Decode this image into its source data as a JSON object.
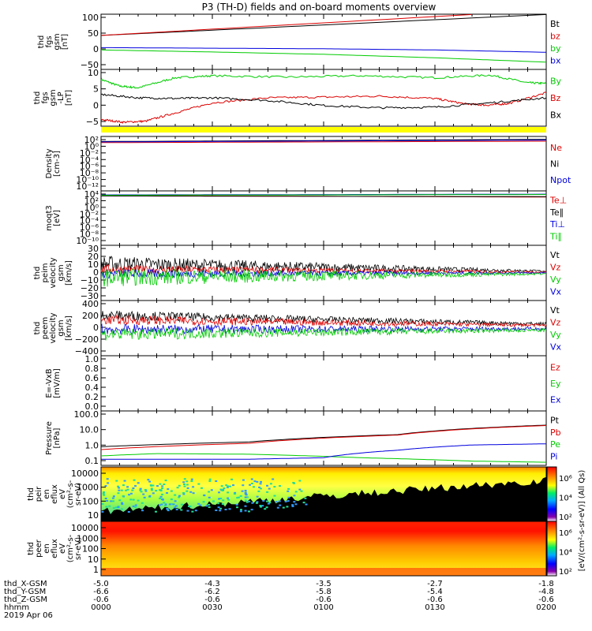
{
  "chart_data": {
    "type": "line",
    "title": "P3 (TH-D) fields and on-board moments overview",
    "x": {
      "ticks": [
        "0000",
        "0030",
        "0100",
        "0130",
        "0200"
      ],
      "range_minutes": [
        0,
        120
      ]
    },
    "ephemeris": {
      "labels": [
        "thd_X-GSM",
        "thd_Y-GSM",
        "thd_Z-GSM",
        "hhmm",
        "2019 Apr 06"
      ],
      "rows": [
        [
          "-5.0",
          "-4.3",
          "-3.5",
          "-2.7",
          "-1.8"
        ],
        [
          "-6.6",
          "-6.2",
          "-5.8",
          "-5.4",
          "-4.8"
        ],
        [
          "-0.6",
          "-0.6",
          "-0.6",
          "-0.6",
          "-0.6"
        ]
      ]
    },
    "panels": [
      {
        "id": "fgs",
        "ylabel": [
          "thd",
          "fgs",
          "gsm",
          "[nT]"
        ],
        "yticks": [
          "100",
          "50",
          "0",
          "−50"
        ],
        "ylim": [
          -85,
          105
        ],
        "legend": [
          {
            "label": "Bt",
            "color": "#000000"
          },
          {
            "label": "bz",
            "color": "#dd0000"
          },
          {
            "label": "by",
            "color": "#00cc00"
          },
          {
            "label": "bx",
            "color": "#0000dd"
          }
        ],
        "series": [
          {
            "name": "Bt",
            "color": "#000000",
            "t": [
              0,
              120
            ],
            "v": [
              32,
              104
            ]
          },
          {
            "name": "bz",
            "color": "#dd0000",
            "t": [
              0,
              100
            ],
            "v": [
              32,
              104
            ]
          },
          {
            "name": "by",
            "color": "#00cc00",
            "t": [
              0,
              30,
              60,
              90,
              120
            ],
            "v": [
              -18,
              -25,
              -33,
              -45,
              -60
            ]
          },
          {
            "name": "bx",
            "color": "#0000dd",
            "t": [
              0,
              30,
              60,
              90,
              120
            ],
            "v": [
              -10,
              -12,
              -14,
              -18,
              -26
            ]
          }
        ]
      },
      {
        "id": "fgs-lp",
        "ylabel": [
          "thd",
          "fgs",
          "gsm",
          "-LP",
          "[nT]"
        ],
        "yticks": [
          "10",
          "5",
          "0",
          "−5"
        ],
        "ylim": [
          -6.5,
          10.5
        ],
        "legend": [
          {
            "label": "By",
            "color": "#00cc00"
          },
          {
            "label": "Bz",
            "color": "#dd0000"
          },
          {
            "label": "Bx",
            "color": "#000000"
          }
        ],
        "series": [
          {
            "name": "By",
            "color": "#00cc00",
            "t": [
              0,
              5,
              10,
              20,
              30,
              50,
              70,
              90,
              105,
              115,
              120
            ],
            "v": [
              7.5,
              5.5,
              5.0,
              8.0,
              8.6,
              8.2,
              8.6,
              8.0,
              8.8,
              6.5,
              6.3
            ]
          },
          {
            "name": "Bz",
            "color": "#dd0000",
            "t": [
              0,
              6,
              12,
              20,
              30,
              45,
              60,
              75,
              90,
              98,
              104,
              110,
              120
            ],
            "v": [
              -4.5,
              -5.3,
              -5.0,
              -2.5,
              0.5,
              2.0,
              2.2,
              2.5,
              1.8,
              0.2,
              -0.2,
              0.3,
              3.5
            ]
          },
          {
            "name": "Bx",
            "color": "#000000",
            "t": [
              0,
              10,
              20,
              30,
              45,
              60,
              75,
              90,
              105,
              120
            ],
            "v": [
              3.0,
              2.0,
              1.8,
              2.0,
              1.2,
              -0.3,
              -1.0,
              -0.8,
              0.5,
              2.0
            ]
          }
        ]
      },
      {
        "id": "density",
        "ylabel": [
          "Density",
          "[cm-3]"
        ],
        "yticks": [
          "10²",
          "10⁰",
          "10⁻²",
          "10⁻⁴",
          "10⁻⁶",
          "10⁻⁸",
          "10⁻¹⁰",
          "10⁻¹²"
        ],
        "ylim": [
          -13,
          2
        ],
        "legend": [
          {
            "label": "Ne",
            "color": "#dd0000"
          },
          {
            "label": "Ni",
            "color": "#000000"
          },
          {
            "label": "Npot",
            "color": "#0000dd"
          }
        ],
        "series": [
          {
            "name": "Ne",
            "color": "#dd0000",
            "t": [
              0,
              120
            ],
            "v": [
              0.3,
              0.7
            ]
          },
          {
            "name": "Ni",
            "color": "#000000",
            "t": [
              0,
              120
            ],
            "v": [
              0.6,
              1.2
            ]
          },
          {
            "name": "Npot",
            "color": "#0000dd",
            "t": [
              0,
              120
            ],
            "v": [
              0.5,
              1.0
            ]
          }
        ]
      },
      {
        "id": "temp",
        "ylabel": [
          "moqt3",
          "[eV]"
        ],
        "yticks": [
          "10⁴",
          "10²",
          "10⁰",
          "10⁻²",
          "10⁻⁴",
          "10⁻⁶",
          "10⁻⁸",
          "10⁻¹⁰"
        ],
        "ylim": [
          -10.5,
          4.5
        ],
        "legend": [
          {
            "label": "Te⊥",
            "color": "#dd0000"
          },
          {
            "label": "Te∥",
            "color": "#000000"
          },
          {
            "label": "Ti⊥",
            "color": "#0000dd"
          },
          {
            "label": "Ti∥",
            "color": "#00cc00"
          }
        ],
        "series": [
          {
            "name": "Te⊥",
            "color": "#dd0000",
            "t": [
              0,
              120
            ],
            "v": [
              3.2,
              2.8
            ]
          },
          {
            "name": "Te∥",
            "color": "#000000",
            "t": [
              0,
              120
            ],
            "v": [
              3.1,
              2.9
            ]
          },
          {
            "name": "Ti⊥",
            "color": "#0000dd",
            "t": [
              0,
              120
            ],
            "v": [
              3.4,
              3.6
            ]
          },
          {
            "name": "Ti∥",
            "color": "#00cc00",
            "t": [
              0,
              120
            ],
            "v": [
              3.3,
              3.5
            ]
          }
        ]
      },
      {
        "id": "peim",
        "ylabel": [
          "thd",
          "peim",
          "velocity",
          "gsm",
          "[km/s]"
        ],
        "yticks": [
          "30",
          "20",
          "10",
          "0",
          "−10",
          "−20",
          "−30"
        ],
        "ylim": [
          -30,
          30
        ],
        "legend": [
          {
            "label": "Vt",
            "color": "#000000"
          },
          {
            "label": "Vz",
            "color": "#dd0000"
          },
          {
            "label": "Vy",
            "color": "#00cc00"
          },
          {
            "label": "Vx",
            "color": "#0000dd"
          }
        ],
        "noise": [
          {
            "color": "#000000",
            "base": [
              10,
              2
            ],
            "amp": [
              9,
              1
            ]
          },
          {
            "color": "#dd0000",
            "base": [
              4,
              1
            ],
            "amp": [
              5,
              1
            ]
          },
          {
            "color": "#0000dd",
            "base": [
              -1,
              0
            ],
            "amp": [
              5,
              1
            ]
          },
          {
            "color": "#00cc00",
            "base": [
              -5,
              -1
            ],
            "amp": [
              10,
              1
            ]
          }
        ]
      },
      {
        "id": "peem",
        "ylabel": [
          "thd",
          "peem",
          "velocity",
          "gsm",
          "[km/s]"
        ],
        "yticks": [
          "400",
          "200",
          "0",
          "−200",
          "−400"
        ],
        "ylim": [
          -400,
          400
        ],
        "legend": [
          {
            "label": "Vt",
            "color": "#000000"
          },
          {
            "label": "Vz",
            "color": "#dd0000"
          },
          {
            "label": "Vy",
            "color": "#00cc00"
          },
          {
            "label": "Vx",
            "color": "#0000dd"
          }
        ],
        "noise": [
          {
            "color": "#000000",
            "base": [
              190,
              60
            ],
            "amp": [
              70,
              25
            ]
          },
          {
            "color": "#dd0000",
            "base": [
              120,
              40
            ],
            "amp": [
              70,
              20
            ]
          },
          {
            "color": "#0000dd",
            "base": [
              -20,
              -10
            ],
            "amp": [
              80,
              25
            ]
          },
          {
            "color": "#00cc00",
            "base": [
              -90,
              -30
            ],
            "amp": [
              90,
              25
            ]
          }
        ]
      },
      {
        "id": "efield",
        "ylabel": [
          "E=-VxB",
          "[mV/m]"
        ],
        "yticks": [
          "1.0",
          "0.8",
          "0.6",
          "0.4",
          "0.2",
          "0.0"
        ],
        "ylim": [
          0,
          1
        ],
        "legend": [
          {
            "label": "Ez",
            "color": "#dd0000"
          },
          {
            "label": "Ey",
            "color": "#00cc00"
          },
          {
            "label": "Ex",
            "color": "#0000dd"
          }
        ],
        "series": []
      },
      {
        "id": "pressure",
        "ylabel": [
          "Pressure",
          "[nPa]"
        ],
        "yticks": [
          "100.0",
          "10.0",
          "1.0",
          "0.1"
        ],
        "ylim": [
          -1.1,
          2.05
        ],
        "log": true,
        "legend": [
          {
            "label": "Pt",
            "color": "#000000"
          },
          {
            "label": "Pb",
            "color": "#dd0000"
          },
          {
            "label": "Pe",
            "color": "#00cc00"
          },
          {
            "label": "Pi",
            "color": "#0000dd"
          }
        ],
        "series": [
          {
            "name": "Pt",
            "color": "#000000",
            "t": [
              0,
              40,
              80,
              120
            ],
            "v": [
              0.95,
              1.8,
              4.8,
              17
            ]
          },
          {
            "name": "Pb",
            "color": "#dd0000",
            "t": [
              0,
              40,
              80,
              120
            ],
            "v": [
              0.65,
              1.5,
              4.5,
              16
            ]
          },
          {
            "name": "Pe",
            "color": "#00cc00",
            "t": [
              0,
              15,
              40,
              70,
              100,
              120
            ],
            "v": [
              0.28,
              0.38,
              0.35,
              0.22,
              0.14,
              0.12
            ]
          },
          {
            "name": "Pi",
            "color": "#0000dd",
            "t": [
              0,
              40,
              60,
              80,
              100,
              120
            ],
            "v": [
              0.18,
              0.18,
              0.22,
              0.6,
              1.2,
              1.4
            ]
          }
        ]
      }
    ],
    "spectrograms": [
      {
        "id": "peir",
        "ylabel": [
          "thd",
          "peir",
          "en",
          "eflux",
          "eV",
          "(cm²-s-",
          "sr-eV)"
        ],
        "yticks": [
          "10000",
          "1000",
          "100",
          "10"
        ]
      },
      {
        "id": "peer",
        "ylabel": [
          "thd",
          "peer",
          "en",
          "eflux",
          "eV",
          "(cm²-s-",
          "sr-eV)"
        ],
        "yticks": [
          "10000",
          "1000",
          "100",
          "10",
          "1"
        ]
      }
    ],
    "colorbars": [
      {
        "ticks": [
          "10⁶",
          "10⁴",
          "10²"
        ],
        "label": "[eV/(cm²-s-sr-eV)] (All Qs)"
      },
      {
        "ticks": [
          "10⁶",
          "10⁴",
          "10²"
        ],
        "label": ""
      }
    ]
  }
}
